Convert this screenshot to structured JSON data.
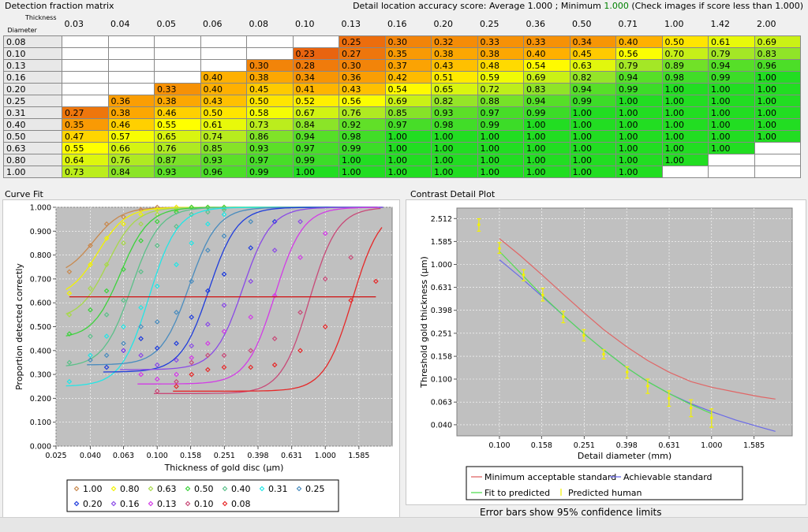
{
  "header": {
    "matrix_title": "Detection fraction matrix",
    "accuracy_prefix": "Detail location accuracy score: Average 1.000 ; Minimum ",
    "accuracy_min": "1.000",
    "accuracy_suffix": " (Check images if score less than 1.000)"
  },
  "matrix": {
    "corner_top": "Thickness",
    "corner_bottom": "Diameter",
    "thickness": [
      "0.03",
      "0.04",
      "0.05",
      "0.06",
      "0.08",
      "0.10",
      "0.13",
      "0.16",
      "0.20",
      "0.25",
      "0.36",
      "0.50",
      "0.71",
      "1.00",
      "1.42",
      "2.00"
    ],
    "rows": [
      {
        "d": "0.08",
        "v": [
          null,
          null,
          null,
          null,
          null,
          null,
          "0.25",
          "0.30",
          "0.32",
          "0.33",
          "0.33",
          "0.34",
          "0.40",
          "0.50",
          "0.61",
          "0.69"
        ]
      },
      {
        "d": "0.10",
        "v": [
          null,
          null,
          null,
          null,
          null,
          "0.23",
          "0.27",
          "0.35",
          "0.38",
          "0.38",
          "0.40",
          "0.45",
          "0.56",
          "0.70",
          "0.79",
          "0.83"
        ]
      },
      {
        "d": "0.13",
        "v": [
          null,
          null,
          null,
          null,
          "0.30",
          "0.28",
          "0.30",
          "0.37",
          "0.43",
          "0.48",
          "0.54",
          "0.63",
          "0.79",
          "0.89",
          "0.94",
          "0.96"
        ]
      },
      {
        "d": "0.16",
        "v": [
          null,
          null,
          null,
          "0.40",
          "0.38",
          "0.34",
          "0.36",
          "0.42",
          "0.51",
          "0.59",
          "0.69",
          "0.82",
          "0.94",
          "0.98",
          "0.99",
          "1.00"
        ]
      },
      {
        "d": "0.20",
        "v": [
          null,
          null,
          "0.33",
          "0.40",
          "0.45",
          "0.41",
          "0.43",
          "0.54",
          "0.65",
          "0.72",
          "0.83",
          "0.94",
          "0.99",
          "1.00",
          "1.00",
          "1.00"
        ]
      },
      {
        "d": "0.25",
        "v": [
          null,
          "0.36",
          "0.38",
          "0.43",
          "0.50",
          "0.52",
          "0.56",
          "0.69",
          "0.82",
          "0.88",
          "0.94",
          "0.99",
          "1.00",
          "1.00",
          "1.00",
          "1.00"
        ]
      },
      {
        "d": "0.31",
        "v": [
          "0.27",
          "0.38",
          "0.46",
          "0.50",
          "0.58",
          "0.67",
          "0.76",
          "0.85",
          "0.93",
          "0.97",
          "0.99",
          "1.00",
          "1.00",
          "1.00",
          "1.00",
          "1.00"
        ]
      },
      {
        "d": "0.40",
        "v": [
          "0.35",
          "0.46",
          "0.55",
          "0.61",
          "0.73",
          "0.84",
          "0.92",
          "0.97",
          "0.98",
          "0.99",
          "1.00",
          "1.00",
          "1.00",
          "1.00",
          "1.00",
          "1.00"
        ]
      },
      {
        "d": "0.50",
        "v": [
          "0.47",
          "0.57",
          "0.65",
          "0.74",
          "0.86",
          "0.94",
          "0.98",
          "1.00",
          "1.00",
          "1.00",
          "1.00",
          "1.00",
          "1.00",
          "1.00",
          "1.00",
          "1.00"
        ]
      },
      {
        "d": "0.63",
        "v": [
          "0.55",
          "0.66",
          "0.76",
          "0.85",
          "0.93",
          "0.97",
          "0.99",
          "1.00",
          "1.00",
          "1.00",
          "1.00",
          "1.00",
          "1.00",
          "1.00",
          "1.00",
          null
        ]
      },
      {
        "d": "0.80",
        "v": [
          "0.64",
          "0.76",
          "0.87",
          "0.93",
          "0.97",
          "0.99",
          "1.00",
          "1.00",
          "1.00",
          "1.00",
          "1.00",
          "1.00",
          "1.00",
          "1.00",
          null,
          null
        ]
      },
      {
        "d": "1.00",
        "v": [
          "0.73",
          "0.84",
          "0.93",
          "0.96",
          "0.99",
          "1.00",
          "1.00",
          "1.00",
          "1.00",
          "1.00",
          "1.00",
          "1.00",
          "1.00",
          null,
          null,
          null
        ]
      }
    ]
  },
  "curve_fit": {
    "panel_title": "Curve Fit",
    "chart_data": {
      "type": "scatter",
      "xlabel": "Thickness of gold disc (µm)",
      "ylabel": "Proportion detected correctly",
      "x_scale": "log",
      "x_ticks": [
        "0.025",
        "0.040",
        "0.063",
        "0.100",
        "0.158",
        "0.251",
        "0.398",
        "0.631",
        "1.000",
        "1.585"
      ],
      "y_ticks": [
        "0.000",
        "0.100",
        "0.200",
        "0.300",
        "0.400",
        "0.500",
        "0.600",
        "0.700",
        "0.800",
        "0.900",
        "1.000"
      ],
      "ylim": [
        0,
        1.0
      ],
      "threshold_y": 0.625,
      "series": [
        {
          "name": "1.00",
          "color": "#c8894e",
          "x": [
            0.03,
            0.04,
            0.05,
            0.063,
            0.08,
            0.1,
            0.13,
            0.16,
            0.2,
            0.25
          ],
          "y": [
            0.73,
            0.84,
            0.93,
            0.96,
            0.99,
            1.0,
            1.0,
            1.0,
            1.0,
            1.0
          ]
        },
        {
          "name": "0.80",
          "color": "#f2f200",
          "x": [
            0.03,
            0.04,
            0.05,
            0.063,
            0.08,
            0.1,
            0.13,
            0.16,
            0.2,
            0.25
          ],
          "y": [
            0.64,
            0.76,
            0.87,
            0.93,
            0.97,
            0.99,
            1.0,
            1.0,
            1.0,
            1.0
          ]
        },
        {
          "name": "0.63",
          "color": "#a8d84a",
          "x": [
            0.03,
            0.04,
            0.05,
            0.063,
            0.08,
            0.1,
            0.13,
            0.16,
            0.2,
            0.25
          ],
          "y": [
            0.55,
            0.66,
            0.76,
            0.85,
            0.93,
            0.97,
            0.99,
            1.0,
            1.0,
            1.0
          ]
        },
        {
          "name": "0.50",
          "color": "#3cd23c",
          "x": [
            0.03,
            0.04,
            0.05,
            0.063,
            0.08,
            0.1,
            0.13,
            0.16,
            0.2,
            0.25
          ],
          "y": [
            0.47,
            0.57,
            0.65,
            0.74,
            0.86,
            0.94,
            0.98,
            1.0,
            1.0,
            1.0
          ]
        },
        {
          "name": "0.40",
          "color": "#5cc08a",
          "x": [
            0.03,
            0.04,
            0.05,
            0.063,
            0.08,
            0.1,
            0.13,
            0.16,
            0.2,
            0.25
          ],
          "y": [
            0.35,
            0.46,
            0.55,
            0.61,
            0.73,
            0.84,
            0.92,
            0.97,
            0.98,
            0.99
          ]
        },
        {
          "name": "0.31",
          "color": "#22e6e6",
          "x": [
            0.03,
            0.04,
            0.05,
            0.063,
            0.08,
            0.1,
            0.13,
            0.16,
            0.2,
            0.25
          ],
          "y": [
            0.27,
            0.38,
            0.46,
            0.5,
            0.58,
            0.67,
            0.76,
            0.85,
            0.93,
            0.97
          ]
        },
        {
          "name": "0.25",
          "color": "#4a8cbe",
          "x": [
            0.04,
            0.05,
            0.063,
            0.08,
            0.1,
            0.13,
            0.16,
            0.2,
            0.25,
            0.36
          ],
          "y": [
            0.36,
            0.38,
            0.43,
            0.5,
            0.52,
            0.56,
            0.69,
            0.82,
            0.88,
            0.94
          ]
        },
        {
          "name": "0.20",
          "color": "#1e3cdc",
          "x": [
            0.05,
            0.063,
            0.08,
            0.1,
            0.13,
            0.16,
            0.2,
            0.25,
            0.36,
            0.5
          ],
          "y": [
            0.33,
            0.4,
            0.45,
            0.41,
            0.43,
            0.54,
            0.65,
            0.72,
            0.83,
            0.94
          ]
        },
        {
          "name": "0.16",
          "color": "#8a4ae6",
          "x": [
            0.063,
            0.08,
            0.1,
            0.13,
            0.16,
            0.2,
            0.25,
            0.36,
            0.5,
            0.71
          ],
          "y": [
            0.4,
            0.38,
            0.34,
            0.36,
            0.42,
            0.51,
            0.59,
            0.69,
            0.82,
            0.94
          ]
        },
        {
          "name": "0.13",
          "color": "#d23ce6",
          "x": [
            0.08,
            0.1,
            0.13,
            0.16,
            0.2,
            0.25,
            0.36,
            0.5,
            0.71,
            1.0
          ],
          "y": [
            0.3,
            0.28,
            0.3,
            0.37,
            0.43,
            0.48,
            0.54,
            0.63,
            0.79,
            0.89
          ]
        },
        {
          "name": "0.10",
          "color": "#c84a78",
          "x": [
            0.1,
            0.13,
            0.16,
            0.2,
            0.25,
            0.36,
            0.5,
            0.71,
            1.0,
            1.42
          ],
          "y": [
            0.23,
            0.27,
            0.35,
            0.38,
            0.38,
            0.4,
            0.45,
            0.56,
            0.7,
            0.79
          ]
        },
        {
          "name": "0.08",
          "color": "#e62828",
          "x": [
            0.13,
            0.16,
            0.2,
            0.25,
            0.36,
            0.5,
            0.71,
            1.0,
            1.42,
            2.0
          ],
          "y": [
            0.25,
            0.3,
            0.32,
            0.33,
            0.33,
            0.34,
            0.4,
            0.5,
            0.61,
            0.69
          ]
        }
      ]
    }
  },
  "contrast_detail": {
    "panel_title": "Contrast Detail Plot",
    "footer": "Error bars show 95% confidence limits",
    "chart_data": {
      "type": "line",
      "xlabel": "Detail diameter (mm)",
      "ylabel": "Threshold gold thickness (µm)",
      "x_scale": "log",
      "y_scale": "log",
      "x_ticks": [
        "0.100",
        "0.158",
        "0.251",
        "0.398",
        "0.631",
        "1.000",
        "1.585"
      ],
      "y_ticks": [
        "0.040",
        "0.063",
        "0.100",
        "0.158",
        "0.251",
        "0.398",
        "0.631",
        "1.000",
        "1.585",
        "2.512"
      ],
      "series": [
        {
          "name": "Minimum acceptable standard",
          "color": "#e06666",
          "x": [
            0.1,
            0.125,
            0.16,
            0.2,
            0.25,
            0.31,
            0.4,
            0.5,
            0.63,
            0.8,
            1.0,
            1.3,
            1.7,
            2.0
          ],
          "y": [
            1.68,
            1.2,
            0.8,
            0.55,
            0.38,
            0.27,
            0.19,
            0.145,
            0.115,
            0.095,
            0.085,
            0.077,
            0.07,
            0.067
          ]
        },
        {
          "name": "Achievable standard",
          "color": "#6a6ae8",
          "x": [
            0.1,
            0.125,
            0.16,
            0.2,
            0.25,
            0.31,
            0.4,
            0.5,
            0.63,
            0.8,
            1.0,
            1.3,
            1.7,
            2.0
          ],
          "y": [
            1.1,
            0.78,
            0.52,
            0.36,
            0.25,
            0.18,
            0.125,
            0.095,
            0.075,
            0.061,
            0.052,
            0.044,
            0.038,
            0.035
          ]
        },
        {
          "name": "Fit to predicted",
          "color": "#55dd55",
          "x": [
            0.1,
            0.125,
            0.16,
            0.2,
            0.25,
            0.31,
            0.4,
            0.5,
            0.63,
            0.8,
            1.0
          ],
          "y": [
            1.3,
            0.85,
            0.53,
            0.36,
            0.25,
            0.18,
            0.125,
            0.095,
            0.075,
            0.06,
            0.05
          ]
        },
        {
          "name": "Predicted human",
          "color": "#f2f200",
          "points": [
            {
              "x": 0.08,
              "y": 2.22,
              "lo": 1.95,
              "hi": 2.5
            },
            {
              "x": 0.1,
              "y": 1.38,
              "lo": 1.25,
              "hi": 1.55
            },
            {
              "x": 0.13,
              "y": 0.81,
              "lo": 0.72,
              "hi": 0.9
            },
            {
              "x": 0.16,
              "y": 0.54,
              "lo": 0.48,
              "hi": 0.62
            },
            {
              "x": 0.2,
              "y": 0.35,
              "lo": 0.31,
              "hi": 0.39
            },
            {
              "x": 0.25,
              "y": 0.24,
              "lo": 0.215,
              "hi": 0.27
            },
            {
              "x": 0.31,
              "y": 0.165,
              "lo": 0.15,
              "hi": 0.18
            },
            {
              "x": 0.4,
              "y": 0.115,
              "lo": 0.102,
              "hi": 0.128
            },
            {
              "x": 0.5,
              "y": 0.087,
              "lo": 0.075,
              "hi": 0.1
            },
            {
              "x": 0.63,
              "y": 0.068,
              "lo": 0.058,
              "hi": 0.079
            },
            {
              "x": 0.8,
              "y": 0.056,
              "lo": 0.047,
              "hi": 0.066
            },
            {
              "x": 1.0,
              "y": 0.046,
              "lo": 0.038,
              "hi": 0.055
            }
          ]
        }
      ]
    }
  }
}
